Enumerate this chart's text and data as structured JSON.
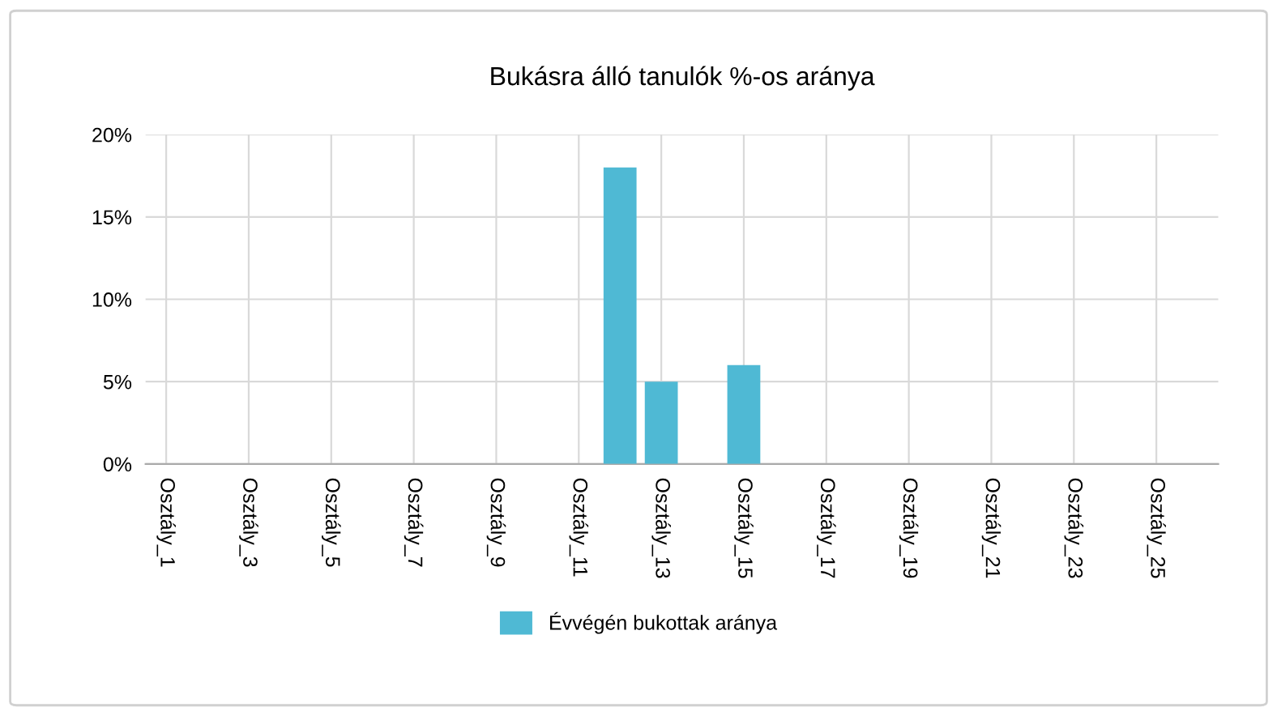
{
  "chart_data": {
    "type": "bar",
    "title": "Bukásra álló tanulók %-os aránya",
    "categories": [
      "Osztály_1",
      null,
      "Osztály_3",
      null,
      "Osztály_5",
      null,
      "Osztály_7",
      null,
      "Osztály_9",
      null,
      "Osztály_11",
      null,
      "Osztály_13",
      null,
      "Osztály_15",
      null,
      "Osztály_17",
      null,
      "Osztály_19",
      null,
      "Osztály_21",
      null,
      "Osztály_23",
      null,
      "Osztály_25",
      null
    ],
    "series": [
      {
        "name": "Évvégén bukottak aránya",
        "color": "#4fb9d4",
        "values": [
          null,
          null,
          null,
          null,
          null,
          null,
          null,
          null,
          null,
          null,
          null,
          18,
          5,
          null,
          6,
          null,
          null,
          null,
          null,
          null,
          null,
          null,
          null,
          null,
          null,
          null
        ]
      }
    ],
    "ylim": [
      0,
      20
    ],
    "yticks": [
      {
        "value": 0,
        "label": "0%"
      },
      {
        "value": 5,
        "label": "5%"
      },
      {
        "value": 10,
        "label": "10%"
      },
      {
        "value": 15,
        "label": "15%"
      },
      {
        "value": 20,
        "label": "20%"
      }
    ],
    "grid": true,
    "legend": "bottom"
  }
}
